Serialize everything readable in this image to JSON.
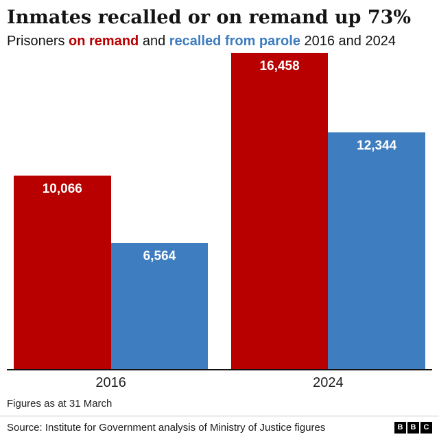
{
  "title": "Inmates recalled or on remand up 73%",
  "subtitle": {
    "prefix": "Prisoners ",
    "series1_label": "on remand",
    "middle": " and ",
    "series2_label": "recalled from parole",
    "suffix": " 2016 and 2024"
  },
  "colors": {
    "remand_red": "#b80000",
    "parole_blue": "#3e7dbf",
    "axis_line": "#111111"
  },
  "chart_data": {
    "type": "bar",
    "title": "Inmates recalled or on remand up 73%",
    "subtitle": "Prisoners on remand and recalled from parole 2016 and 2024",
    "categories": [
      "2016",
      "2024"
    ],
    "series": [
      {
        "name": "on remand",
        "color": "#b80000",
        "values": [
          10066,
          16458
        ],
        "labels": [
          "10,066",
          "16,458"
        ]
      },
      {
        "name": "recalled from parole",
        "color": "#3e7dbf",
        "values": [
          6564,
          12344
        ],
        "labels": [
          "6,564",
          "12,344"
        ]
      }
    ],
    "ylim": [
      0,
      16458
    ],
    "grid": false,
    "legend_position": "in-subtitle",
    "value_labels_inside_bars": true,
    "footnote": "Figures as at 31 March"
  },
  "footer": {
    "footnote": "Figures as at 31 March",
    "source": "Source: Institute for Government analysis of Ministry of Justice figures",
    "logo_letters": [
      "B",
      "B",
      "C"
    ]
  }
}
